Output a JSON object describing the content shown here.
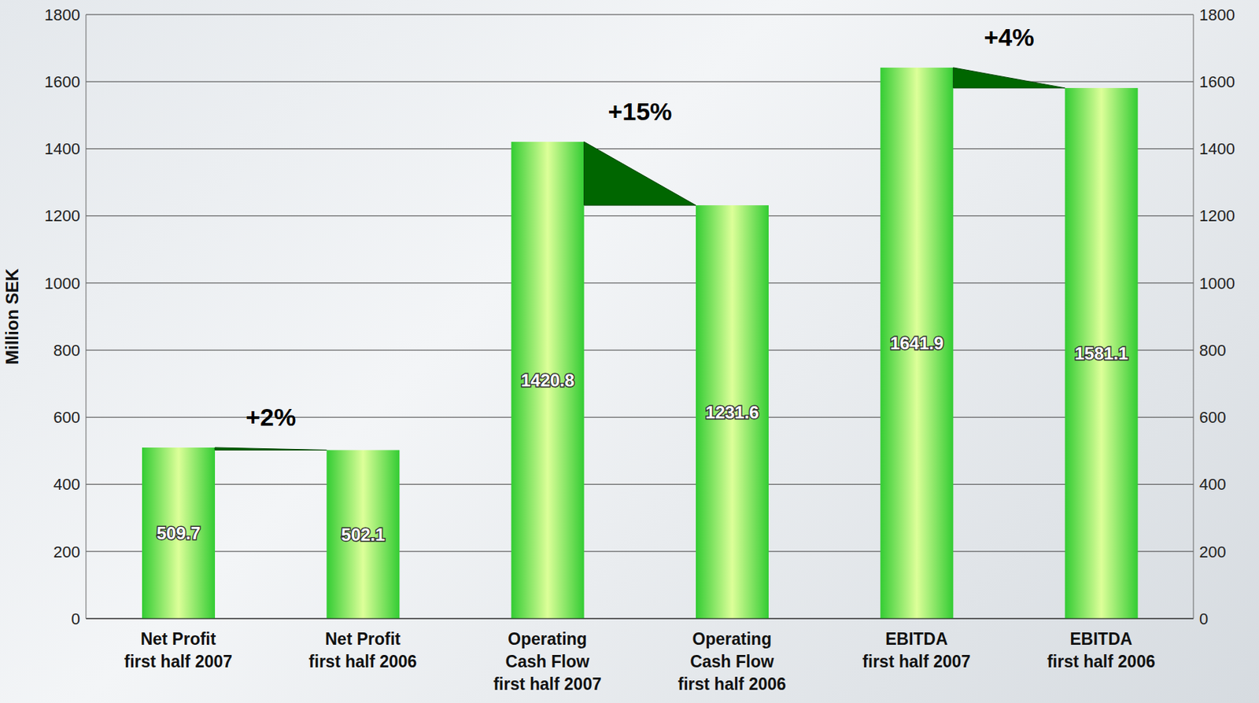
{
  "chart_data": {
    "type": "bar",
    "y_label": "Million SEK",
    "categories": [
      "Net Profit\nfirst half 2007",
      "Net Profit\nfirst half 2006",
      "Operating\nCash Flow\nfirst half 2007",
      "Operating\nCash Flow\nfirst half 2006",
      "EBITDA\nfirst half 2007",
      "EBITDA\nfirst half 2006"
    ],
    "values": [
      509.7,
      502.1,
      1420.8,
      1231.6,
      1641.9,
      1581.1
    ],
    "color": "#33cc33",
    "ylim": [
      0,
      1800
    ],
    "yticks": [
      0,
      200,
      400,
      600,
      800,
      1000,
      1200,
      1400,
      1600,
      1800
    ],
    "y2lim": [
      0,
      1800
    ],
    "y2ticks": [
      0,
      200,
      400,
      600,
      800,
      1000,
      1200,
      1400,
      1600,
      1800
    ],
    "annotations": [
      "+2%",
      "+15%",
      "+4%"
    ],
    "grid": true,
    "data_labels": true
  }
}
